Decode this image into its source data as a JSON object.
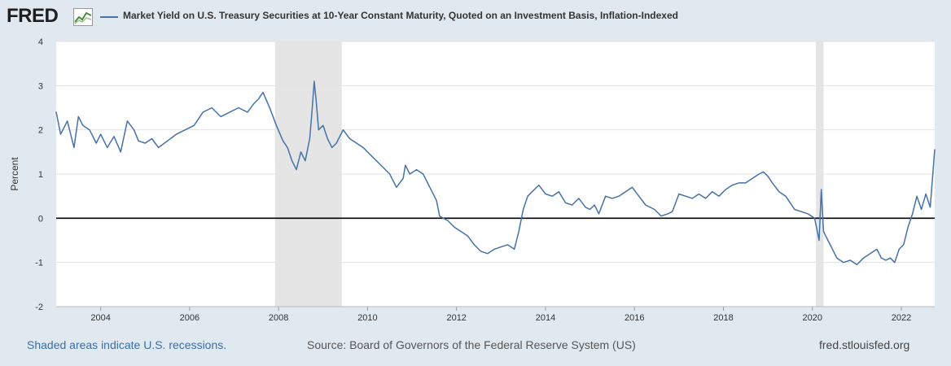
{
  "header": {
    "logo_text": "FRED",
    "logo_icon": "graph-icon",
    "title": "Market Yield on U.S. Treasury Securities at 10-Year Constant Maturity, Quoted on an Investment Basis, Inflation-Indexed"
  },
  "footer": {
    "recession_note": "Shaded areas indicate U.S. recessions.",
    "source": "Source: Board of Governors of the Federal Reserve System (US)",
    "site": "fred.stlouisfed.org"
  },
  "colors": {
    "background": "#e1e9f0",
    "plot_bg": "#ffffff",
    "series": "#4572a7",
    "recession": "#e5e5e5",
    "gridline": "#e3e3e3",
    "zero_line": "#000000"
  },
  "chart_data": {
    "type": "line",
    "title": "Market Yield on U.S. Treasury Securities at 10-Year Constant Maturity, Quoted on an Investment Basis, Inflation-Indexed",
    "xlabel": "",
    "ylabel": "Percent",
    "xlim": [
      2003.0,
      2022.75
    ],
    "ylim": [
      -2,
      4
    ],
    "x_ticks": [
      2004,
      2006,
      2008,
      2010,
      2012,
      2014,
      2016,
      2018,
      2020,
      2022
    ],
    "y_ticks": [
      -2,
      -1,
      0,
      1,
      2,
      3,
      4
    ],
    "grid": "horizontal",
    "zero_line": true,
    "recessions": [
      [
        2007.92,
        2009.42
      ],
      [
        2020.08,
        2020.25
      ]
    ],
    "series": [
      {
        "name": "Market Yield on U.S. Treasury Securities at 10-Year Constant Maturity, Quoted on an Investment Basis, Inflation-Indexed",
        "x": [
          2003.0,
          2003.1,
          2003.25,
          2003.4,
          2003.5,
          2003.6,
          2003.75,
          2003.9,
          2004.0,
          2004.15,
          2004.3,
          2004.45,
          2004.6,
          2004.75,
          2004.85,
          2005.0,
          2005.15,
          2005.3,
          2005.5,
          2005.7,
          2005.9,
          2006.1,
          2006.3,
          2006.5,
          2006.7,
          2006.9,
          2007.1,
          2007.3,
          2007.45,
          2007.55,
          2007.65,
          2007.8,
          2007.95,
          2008.1,
          2008.2,
          2008.3,
          2008.4,
          2008.5,
          2008.6,
          2008.7,
          2008.75,
          2008.8,
          2008.85,
          2008.9,
          2009.0,
          2009.1,
          2009.2,
          2009.3,
          2009.45,
          2009.6,
          2009.75,
          2009.9,
          2010.1,
          2010.3,
          2010.5,
          2010.65,
          2010.8,
          2010.85,
          2010.95,
          2011.1,
          2011.25,
          2011.4,
          2011.55,
          2011.62,
          2011.7,
          2011.8,
          2011.95,
          2012.1,
          2012.25,
          2012.4,
          2012.55,
          2012.7,
          2012.85,
          2013.0,
          2013.15,
          2013.3,
          2013.4,
          2013.5,
          2013.6,
          2013.7,
          2013.85,
          2014.0,
          2014.15,
          2014.3,
          2014.45,
          2014.6,
          2014.75,
          2014.9,
          2015.0,
          2015.1,
          2015.2,
          2015.35,
          2015.5,
          2015.65,
          2015.8,
          2015.95,
          2016.1,
          2016.25,
          2016.45,
          2016.6,
          2016.75,
          2016.85,
          2017.0,
          2017.15,
          2017.3,
          2017.45,
          2017.6,
          2017.75,
          2017.9,
          2018.05,
          2018.2,
          2018.35,
          2018.5,
          2018.65,
          2018.8,
          2018.9,
          2019.0,
          2019.1,
          2019.25,
          2019.4,
          2019.5,
          2019.6,
          2019.75,
          2019.9,
          2020.05,
          2020.15,
          2020.2,
          2020.25,
          2020.3,
          2020.4,
          2020.55,
          2020.7,
          2020.85,
          2021.0,
          2021.15,
          2021.3,
          2021.45,
          2021.55,
          2021.65,
          2021.75,
          2021.85,
          2021.95,
          2022.05,
          2022.15,
          2022.25,
          2022.35,
          2022.45,
          2022.55,
          2022.65,
          2022.75
        ],
        "y": [
          2.4,
          1.9,
          2.2,
          1.6,
          2.3,
          2.1,
          2.0,
          1.7,
          1.9,
          1.6,
          1.85,
          1.5,
          2.2,
          2.0,
          1.75,
          1.7,
          1.8,
          1.6,
          1.75,
          1.9,
          2.0,
          2.1,
          2.4,
          2.5,
          2.3,
          2.4,
          2.5,
          2.4,
          2.6,
          2.7,
          2.85,
          2.5,
          2.1,
          1.75,
          1.6,
          1.3,
          1.1,
          1.5,
          1.3,
          1.8,
          2.4,
          3.1,
          2.6,
          2.0,
          2.1,
          1.8,
          1.6,
          1.7,
          2.0,
          1.8,
          1.7,
          1.6,
          1.4,
          1.2,
          1.0,
          0.7,
          0.9,
          1.2,
          1.0,
          1.1,
          1.0,
          0.7,
          0.4,
          0.05,
          0.0,
          -0.05,
          -0.2,
          -0.3,
          -0.4,
          -0.6,
          -0.75,
          -0.8,
          -0.7,
          -0.65,
          -0.6,
          -0.7,
          -0.3,
          0.2,
          0.5,
          0.6,
          0.75,
          0.55,
          0.5,
          0.6,
          0.35,
          0.3,
          0.45,
          0.25,
          0.2,
          0.3,
          0.1,
          0.5,
          0.45,
          0.5,
          0.6,
          0.7,
          0.5,
          0.3,
          0.2,
          0.05,
          0.1,
          0.15,
          0.55,
          0.5,
          0.45,
          0.55,
          0.45,
          0.6,
          0.5,
          0.65,
          0.75,
          0.8,
          0.8,
          0.9,
          1.0,
          1.05,
          0.95,
          0.8,
          0.6,
          0.5,
          0.35,
          0.2,
          0.15,
          0.1,
          0.0,
          -0.5,
          0.65,
          -0.3,
          -0.4,
          -0.6,
          -0.9,
          -1.0,
          -0.95,
          -1.05,
          -0.9,
          -0.8,
          -0.7,
          -0.9,
          -0.95,
          -0.9,
          -1.0,
          -0.7,
          -0.6,
          -0.2,
          0.1,
          0.5,
          0.2,
          0.55,
          0.25,
          1.55
        ]
      }
    ]
  }
}
